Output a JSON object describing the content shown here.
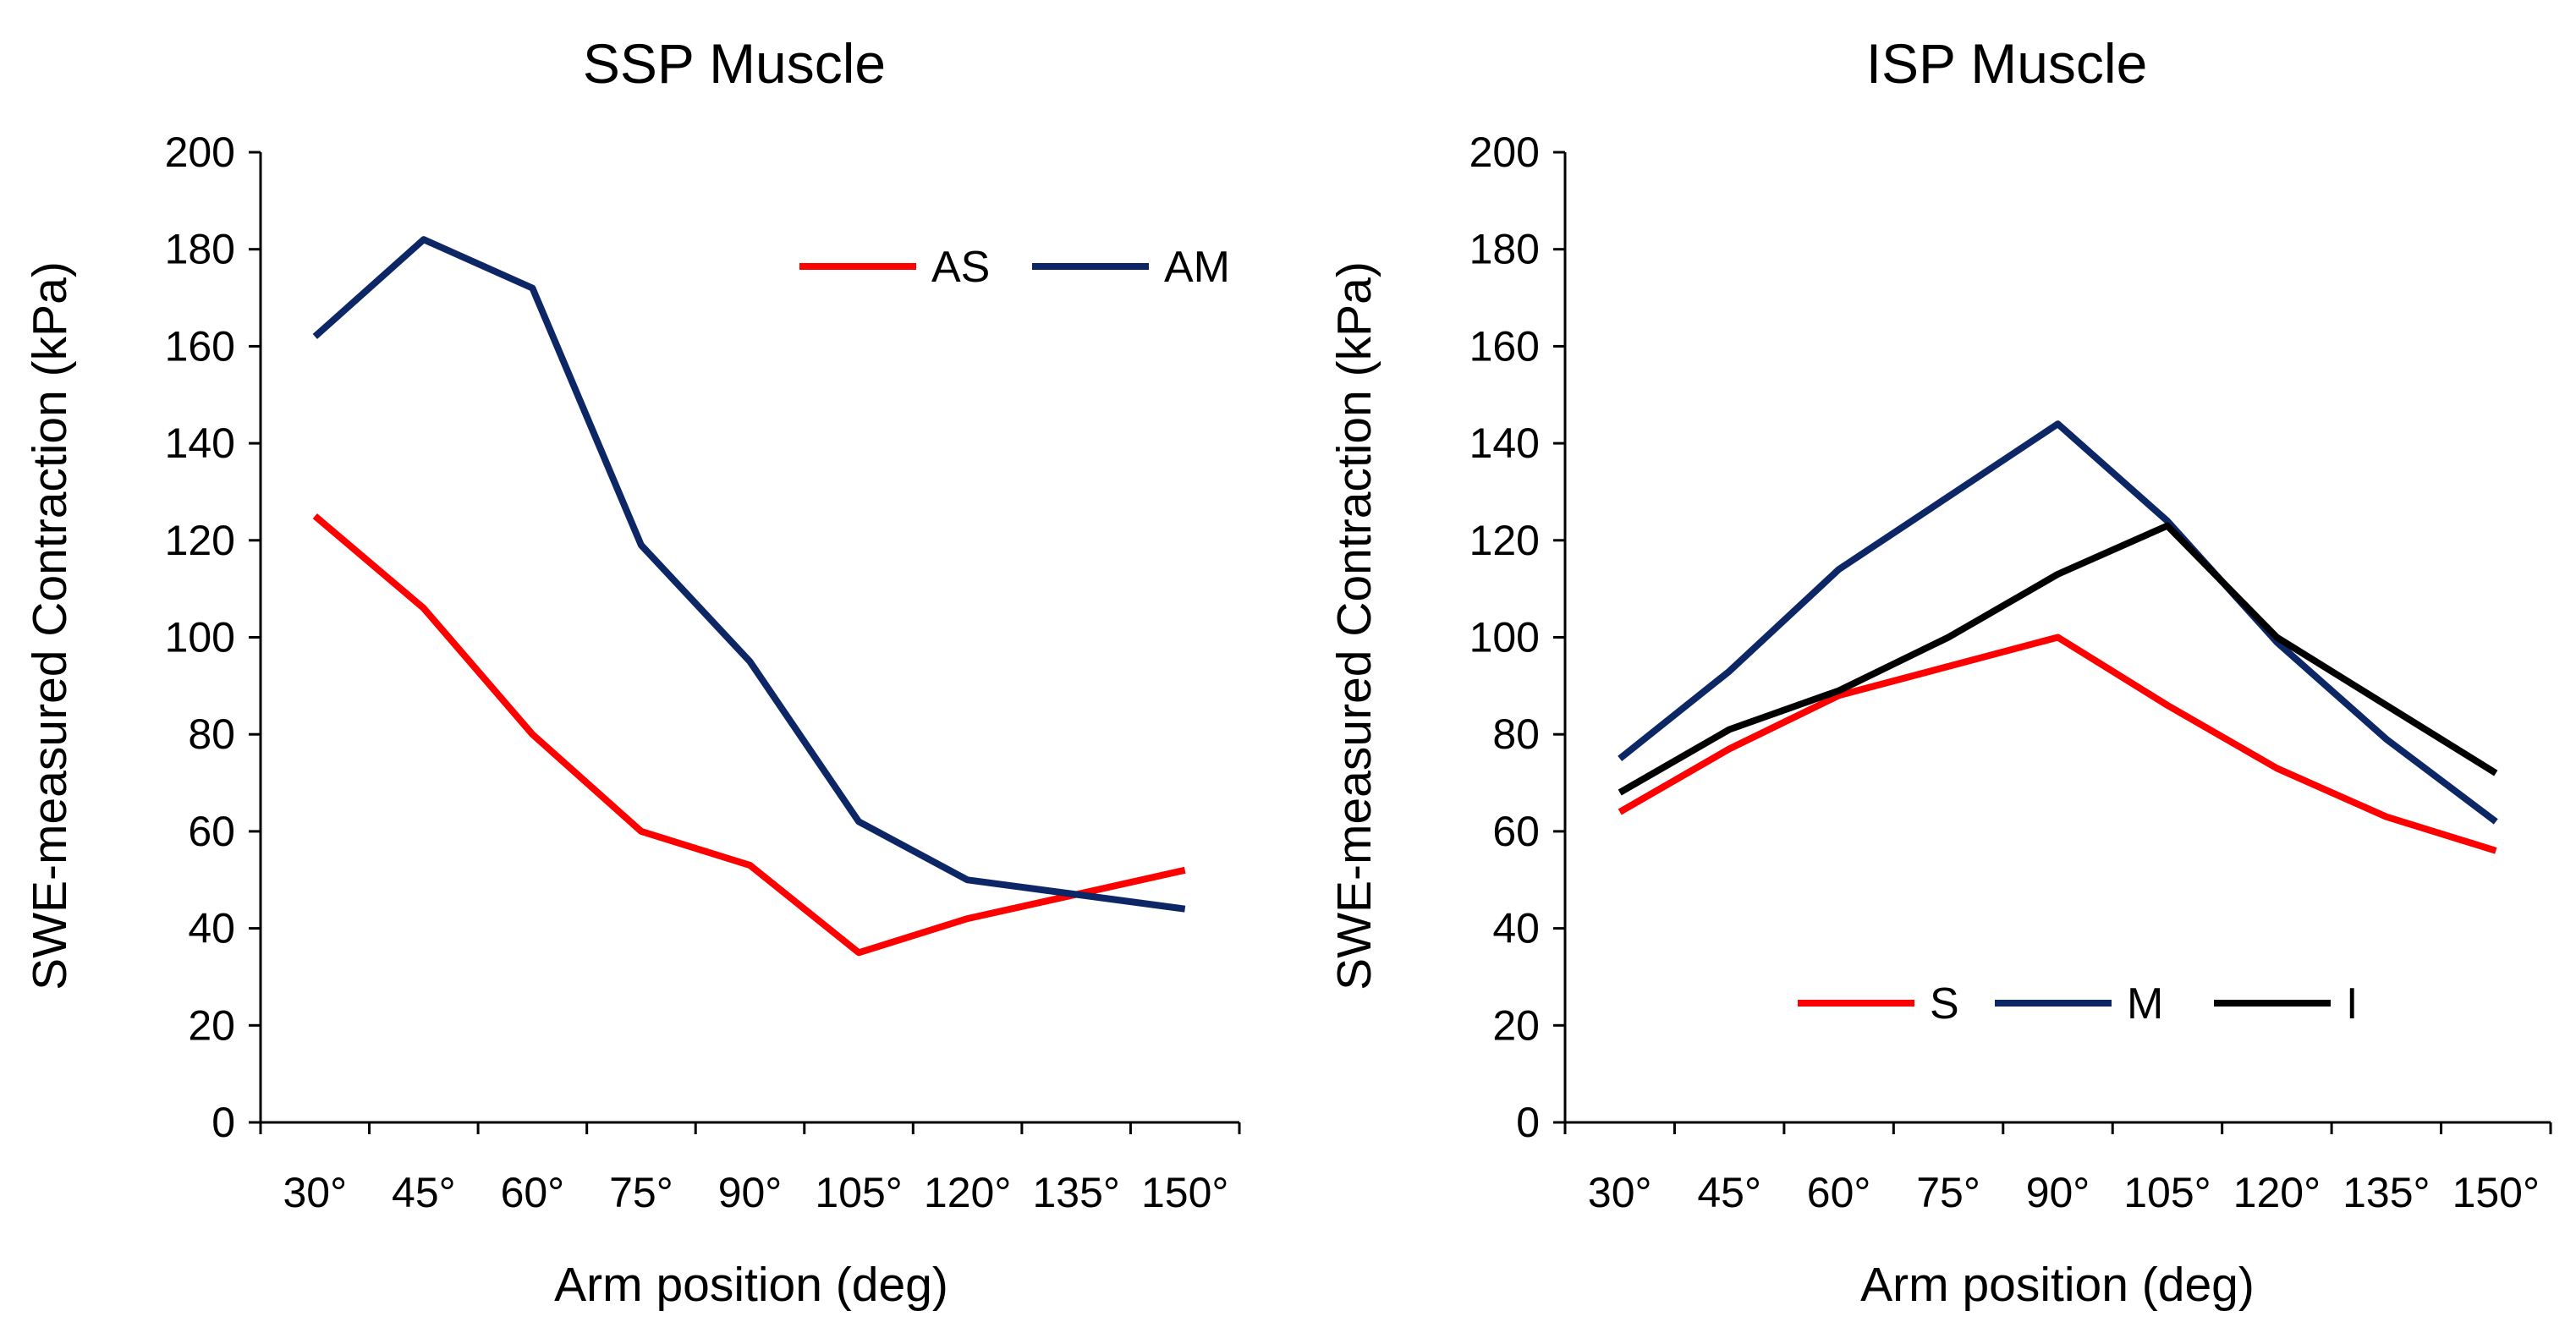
{
  "chart_data": [
    {
      "type": "line",
      "title": "SSP Muscle",
      "xlabel": "Arm position (deg)",
      "ylabel": "SWE-measured Contraction (kPa)",
      "ylim": [
        0,
        200
      ],
      "yticks": [
        0,
        20,
        40,
        60,
        80,
        100,
        120,
        140,
        160,
        180,
        200
      ],
      "categories": [
        "30°",
        "45°",
        "60°",
        "75°",
        "90°",
        "105°",
        "120°",
        "135°",
        "150°"
      ],
      "legend_position": "top-right",
      "series": [
        {
          "name": "AS",
          "color": "#ff0000",
          "values": [
            125,
            106,
            80,
            60,
            53,
            35,
            42,
            47,
            52
          ]
        },
        {
          "name": "AM",
          "color": "#0d2666",
          "values": [
            162,
            182,
            172,
            119,
            95,
            62,
            50,
            47,
            44
          ]
        }
      ]
    },
    {
      "type": "line",
      "title": "ISP Muscle",
      "xlabel": "Arm position (deg)",
      "ylabel": "SWE-measured Contraction (kPa)",
      "ylim": [
        0,
        200
      ],
      "yticks": [
        0,
        20,
        40,
        60,
        80,
        100,
        120,
        140,
        160,
        180,
        200
      ],
      "categories": [
        "30°",
        "45°",
        "60°",
        "75°",
        "90°",
        "105°",
        "120°",
        "135°",
        "150°"
      ],
      "legend_position": "bottom-center",
      "series": [
        {
          "name": "S",
          "color": "#ff0000",
          "values": [
            64,
            77,
            88,
            94,
            100,
            86,
            73,
            63,
            56
          ]
        },
        {
          "name": "M",
          "color": "#0d2666",
          "values": [
            75,
            93,
            114,
            129,
            144,
            124,
            99,
            79,
            62
          ]
        },
        {
          "name": "I",
          "color": "#000000",
          "values": [
            68,
            81,
            89,
            100,
            113,
            123,
            100,
            86,
            72
          ]
        }
      ]
    }
  ]
}
